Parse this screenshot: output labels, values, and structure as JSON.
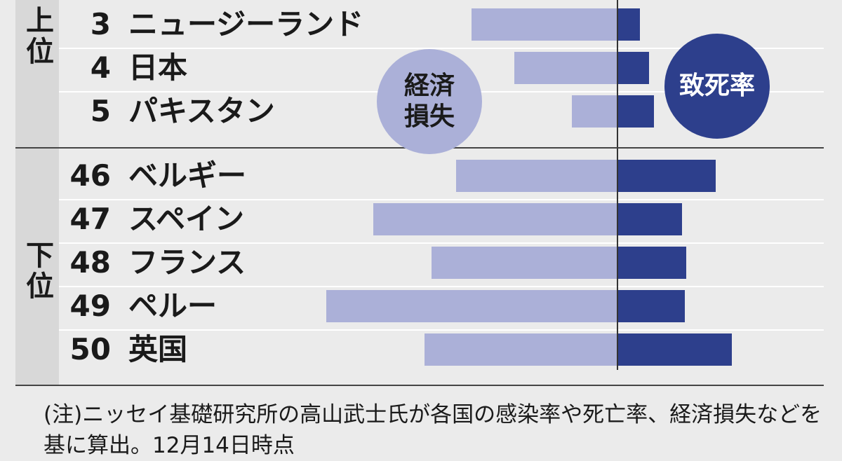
{
  "chart_data": {
    "type": "bar",
    "groups": [
      {
        "label": "上位",
        "ranks": [
          "3",
          "4",
          "5"
        ]
      },
      {
        "label": "下位",
        "ranks": [
          "46",
          "47",
          "48",
          "49",
          "50"
        ]
      }
    ],
    "rows": [
      {
        "rank": "3",
        "country": "ニュージーランド",
        "loss": 208,
        "fatality": 32
      },
      {
        "rank": "4",
        "country": "日本",
        "loss": 147,
        "fatality": 45
      },
      {
        "rank": "5",
        "country": "パキスタン",
        "loss": 65,
        "fatality": 52
      },
      {
        "rank": "46",
        "country": "ベルギー",
        "loss": 230,
        "fatality": 140
      },
      {
        "rank": "47",
        "country": "スペイン",
        "loss": 348,
        "fatality": 92
      },
      {
        "rank": "48",
        "country": "フランス",
        "loss": 265,
        "fatality": 98
      },
      {
        "rank": "49",
        "country": "ペルー",
        "loss": 415,
        "fatality": 96
      },
      {
        "rank": "50",
        "country": "英国",
        "loss": 275,
        "fatality": 163
      }
    ],
    "series": [
      {
        "name": "経済損失",
        "color": "#abb0d8"
      },
      {
        "name": "致死率",
        "color": "#2d3f8c"
      }
    ],
    "note": "(注)ニッセイ基礎研究所の高山武士氏が各国の感染率や死亡率、経済損失などを基に算出。12月14日時点"
  }
}
